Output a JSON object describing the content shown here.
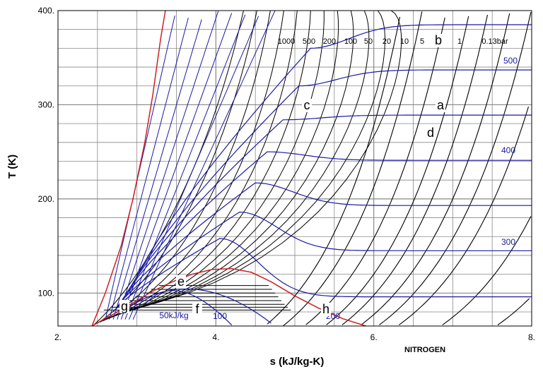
{
  "chart_data": {
    "type": "line",
    "xlabel": "s (kJ/kg-K)",
    "ylabel": "T (K)",
    "note": "NITROGEN",
    "xlim": [
      2.0,
      8.0
    ],
    "ylim": [
      65,
      400
    ],
    "x_ticks": [
      {
        "value": 2,
        "label": "2."
      },
      {
        "value": 4,
        "label": "4."
      },
      {
        "value": 6,
        "label": "6."
      },
      {
        "value": 8,
        "label": "8."
      }
    ],
    "y_ticks": [
      {
        "value": 100,
        "label": "100."
      },
      {
        "value": 200,
        "label": "200."
      },
      {
        "value": 300,
        "label": "300."
      },
      {
        "value": 400,
        "label": "400."
      }
    ],
    "grid": true,
    "colors": {
      "saturation": "#cc2222",
      "isobar": "#000000",
      "isenthalp": "#1a1aa6",
      "grid": "#888888"
    },
    "saturation_dome": {
      "x": [
        2.43,
        2.6,
        2.8,
        3.0,
        3.2,
        3.45,
        3.7,
        3.95,
        4.2,
        4.45,
        4.7,
        5.0,
        5.3,
        5.6,
        5.9
      ],
      "y": [
        65,
        73,
        82,
        92,
        102,
        112,
        120,
        125,
        126,
        122,
        112,
        97,
        84,
        73,
        65
      ]
    },
    "liquid_line": {
      "x": [
        2.43,
        2.6,
        2.8,
        2.95,
        3.1,
        3.2,
        3.3,
        3.36
      ],
      "y": [
        65,
        100,
        150,
        200,
        260,
        310,
        370,
        400
      ]
    },
    "isobars": {
      "labels": [
        "1000",
        "500",
        "200",
        "100",
        "50",
        "20",
        "10",
        "5",
        "1",
        "0.13bar"
      ],
      "base_s": [
        4.62,
        4.85,
        5.12,
        5.38,
        5.58,
        5.82,
        6.05,
        6.3,
        6.85,
        7.55
      ]
    },
    "isenthalps": {
      "labels": [
        "50kJ/kg",
        "100",
        "200",
        "300",
        "400",
        "500"
      ],
      "T_right": [
        96,
        145,
        193,
        241,
        289,
        337,
        385
      ]
    },
    "letters": [
      "a",
      "b",
      "c",
      "d",
      "e",
      "f",
      "g",
      "h"
    ]
  }
}
